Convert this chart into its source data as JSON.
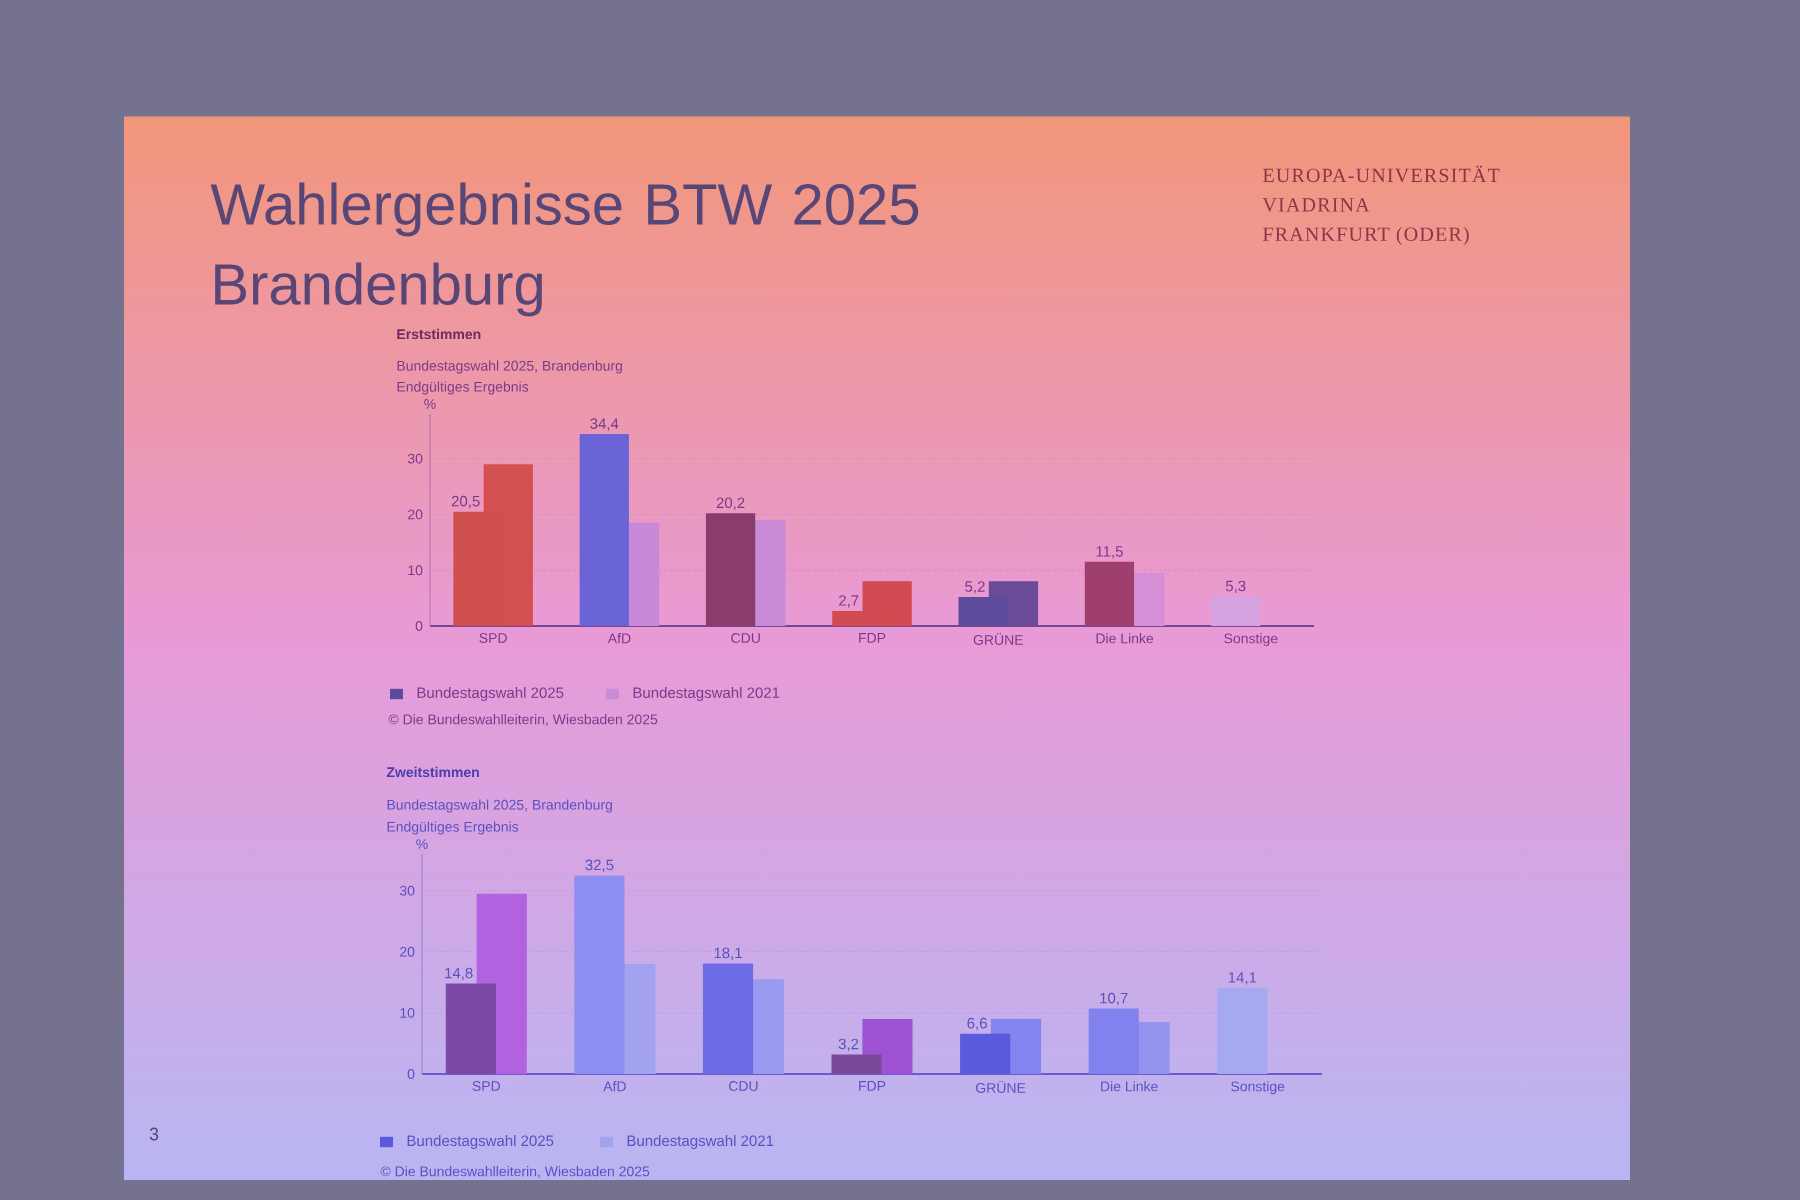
{
  "chart_data": [
    {
      "type": "other",
      "title": "Wahlergebnisse BTW 2025 Brandenburg",
      "annotations": [
        "EUROPA-UNIVERSITÄT",
        "VIADRINA",
        "FRANKFURT (ODER)",
        "3"
      ]
    },
    {
      "type": "bar",
      "title": "Erststimmen",
      "subtitle": "Bundestagswahl 2025, Brandenburg",
      "ylabel": "%",
      "categories": [
        "SPD",
        "AfD",
        "CDU",
        "FDP",
        "GRÜNE",
        "Die Linke",
        "Sonstige"
      ],
      "series": [
        {
          "name": "Bundestagswahl 2025",
          "color": "#5c4a9c",
          "colors": [
            "#cf4f4f",
            "#6a64d6",
            "#8a3c6c",
            "#d24b52",
            "#5c4a9c",
            "#9e3f6e",
            "#d6a2e2"
          ],
          "values": [
            20.5,
            34.4,
            20.2,
            2.7,
            5.2,
            11.5,
            5.3
          ],
          "value_labels": [
            "20,5",
            "34,4",
            "20,2",
            "2,7",
            "5,2",
            "11,5",
            "5,3"
          ]
        },
        {
          "name": "Bundestagswahl 2021",
          "color": "#c98ad6",
          "colors": [
            "#d45050",
            "#c78ad8",
            "#c98ad6",
            "#d24b52",
            "#6b4a98",
            "#d68fd6",
            null
          ],
          "values": [
            29,
            18.5,
            19,
            8,
            8,
            9.5,
            null
          ]
        }
      ],
      "ylim": [
        0,
        38
      ],
      "yticks": [
        0,
        10,
        20,
        30
      ],
      "grid": "y",
      "legend": "bottom",
      "annotations": [
        "Endgültiges Ergebnis",
        "© Die Bundeswahlleiterin, Wiesbaden 2025"
      ]
    },
    {
      "type": "bar",
      "title": "Zweitstimmen",
      "subtitle": "Bundestagswahl 2025, Brandenburg",
      "ylabel": "%",
      "categories": [
        "SPD",
        "AfD",
        "CDU",
        "FDP",
        "GRÜNE",
        "Die Linke",
        "Sonstige"
      ],
      "series": [
        {
          "name": "Bundestagswahl 2025",
          "color": "#5a5ade",
          "colors": [
            "#7a4aa6",
            "#8c8ef0",
            "#6c6ce6",
            "#7a4a98",
            "#5a5ade",
            "#8282ee",
            "#a6a8f0"
          ],
          "values": [
            14.8,
            32.5,
            18.1,
            3.2,
            6.6,
            10.7,
            14.1
          ],
          "value_labels": [
            "14,8",
            "32,5",
            "18,1",
            "3,2",
            "6,6",
            "10,7",
            "14,1"
          ]
        },
        {
          "name": "Bundestagswahl 2021",
          "color": "#a2a2f0",
          "colors": [
            "#b262e0",
            "#a2a2f0",
            "#9a9af0",
            "#9c52d2",
            "#8484f0",
            "#9494f0",
            null
          ],
          "values": [
            29.5,
            18,
            15.5,
            9,
            9,
            8.5,
            null
          ]
        }
      ],
      "ylim": [
        0,
        36
      ],
      "yticks": [
        0,
        10,
        20,
        30
      ],
      "grid": "y",
      "legend": "bottom",
      "annotations": [
        "Endgültiges Ergebnis",
        "© Die Bundeswahlleiterin, Wiesbaden 2025"
      ]
    }
  ]
}
